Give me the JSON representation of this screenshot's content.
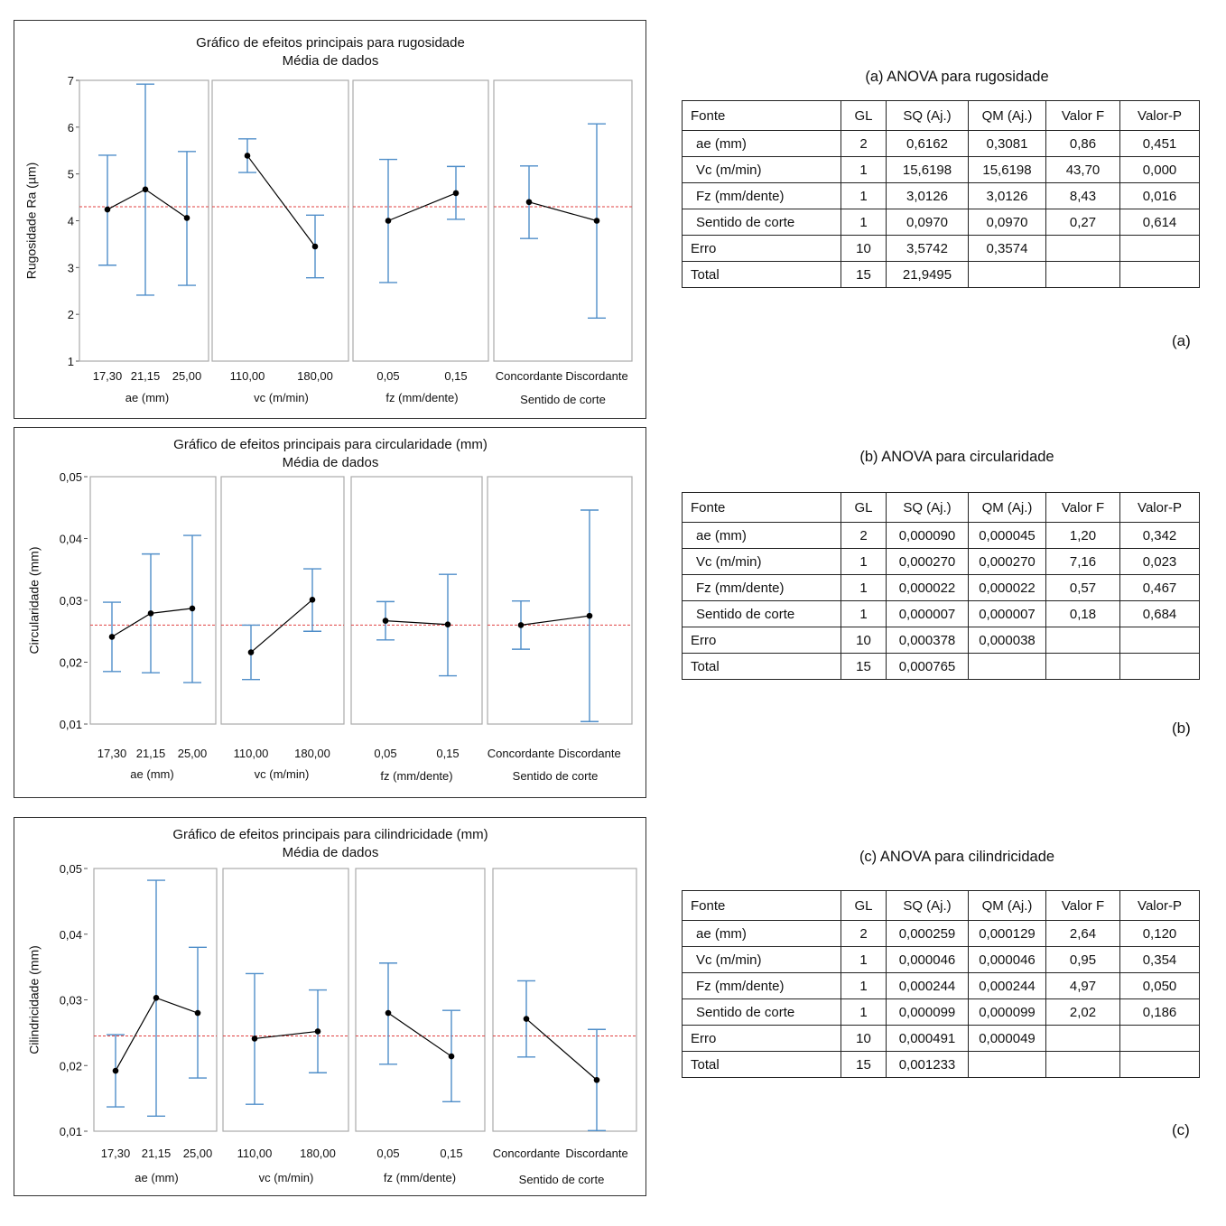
{
  "colors": {
    "errorbar": "#4f8ec9",
    "panel_border": "#aaaaaa",
    "refline": "#e04040",
    "line": "#000000"
  },
  "chart_data": [
    {
      "type": "line",
      "title": "Gráfico de efeitos principais para rugosidade",
      "subtitle": "Média de dados",
      "ylabel": "Rugosidade Ra (µm)",
      "ylim": [
        1,
        7
      ],
      "yticks": [
        "1",
        "2",
        "3",
        "4",
        "5",
        "6",
        "7"
      ],
      "mean_line": 4.3,
      "panels": [
        {
          "factor": "ae (mm)",
          "levels": [
            "17,30",
            "21,15",
            "25,00"
          ],
          "means": [
            4.24,
            4.67,
            4.06
          ],
          "lower": [
            3.05,
            2.41,
            2.62
          ],
          "upper": [
            5.4,
            6.92,
            5.48
          ]
        },
        {
          "factor": "vc (m/min)",
          "levels": [
            "110,00",
            "180,00"
          ],
          "means": [
            5.39,
            3.45
          ],
          "lower": [
            5.03,
            2.78
          ],
          "upper": [
            5.75,
            4.12
          ]
        },
        {
          "factor": "fz (mm/dente)",
          "levels": [
            "0,05",
            "0,15"
          ],
          "means": [
            4.0,
            4.59
          ],
          "lower": [
            2.68,
            4.03
          ],
          "upper": [
            5.31,
            5.16
          ]
        },
        {
          "factor": "Sentido de corte",
          "levels": [
            "Concordante",
            "Discordante"
          ],
          "means": [
            4.4,
            4.0
          ],
          "lower": [
            3.62,
            1.92
          ],
          "upper": [
            5.17,
            6.07
          ]
        }
      ]
    },
    {
      "type": "line",
      "title": "Gráfico de efeitos principais para circularidade (mm)",
      "subtitle": "Média de dados",
      "ylabel": "Circularidade (mm)",
      "ylim": [
        0.01,
        0.05
      ],
      "yticks": [
        "0,01",
        "0,02",
        "0,03",
        "0,04",
        "0,05"
      ],
      "mean_line": 0.026,
      "panels": [
        {
          "factor": "ae (mm)",
          "levels": [
            "17,30",
            "21,15",
            "25,00"
          ],
          "means": [
            0.0241,
            0.0279,
            0.0287
          ],
          "lower": [
            0.0185,
            0.0183,
            0.0167
          ],
          "upper": [
            0.0297,
            0.0375,
            0.0405
          ]
        },
        {
          "factor": "vc (m/min)",
          "levels": [
            "110,00",
            "180,00"
          ],
          "means": [
            0.0216,
            0.0301
          ],
          "lower": [
            0.0172,
            0.025
          ],
          "upper": [
            0.026,
            0.0351
          ]
        },
        {
          "factor": "fz (mm/dente)",
          "levels": [
            "0,05",
            "0,15"
          ],
          "means": [
            0.0267,
            0.0261
          ],
          "lower": [
            0.0236,
            0.0178
          ],
          "upper": [
            0.0298,
            0.0342
          ]
        },
        {
          "factor": "Sentido de corte",
          "levels": [
            "Concordante",
            "Discordante"
          ],
          "means": [
            0.026,
            0.0275
          ],
          "lower": [
            0.0221,
            0.0104
          ],
          "upper": [
            0.0299,
            0.0446
          ]
        }
      ]
    },
    {
      "type": "line",
      "title": "Gráfico de efeitos principais para cilindricidade (mm)",
      "subtitle": "Média de dados",
      "ylabel": "Cilindricidade (mm)",
      "ylim": [
        0.01,
        0.05
      ],
      "yticks": [
        "0,01",
        "0,02",
        "0,03",
        "0,04",
        "0,05"
      ],
      "mean_line": 0.0245,
      "panels": [
        {
          "factor": "ae (mm)",
          "levels": [
            "17,30",
            "21,15",
            "25,00"
          ],
          "means": [
            0.0192,
            0.0303,
            0.028
          ],
          "lower": [
            0.0137,
            0.0123,
            0.0181
          ],
          "upper": [
            0.0247,
            0.0482,
            0.038
          ]
        },
        {
          "factor": "vc (m/min)",
          "levels": [
            "110,00",
            "180,00"
          ],
          "means": [
            0.0241,
            0.0252
          ],
          "lower": [
            0.0141,
            0.0189
          ],
          "upper": [
            0.034,
            0.0315
          ]
        },
        {
          "factor": "fz (mm/dente)",
          "levels": [
            "0,05",
            "0,15"
          ],
          "means": [
            0.028,
            0.0214
          ],
          "lower": [
            0.0202,
            0.0145
          ],
          "upper": [
            0.0356,
            0.0284
          ]
        },
        {
          "factor": "Sentido de corte",
          "levels": [
            "Concordante",
            "Discordante"
          ],
          "means": [
            0.0271,
            0.0178
          ],
          "lower": [
            0.0213,
            0.0101
          ],
          "upper": [
            0.0329,
            0.0255
          ]
        }
      ]
    }
  ],
  "anova": [
    {
      "title": "(a) ANOVA para rugosidade",
      "letter": "(a)",
      "headers": [
        "Fonte",
        "GL",
        "SQ (Aj.)",
        "QM (Aj.)",
        "Valor F",
        "Valor-P"
      ],
      "rows": [
        [
          "ae (mm)",
          "2",
          "0,6162",
          "0,3081",
          "0,86",
          "0,451"
        ],
        [
          "Vc (m/min)",
          "1",
          "15,6198",
          "15,6198",
          "43,70",
          "0,000"
        ],
        [
          "Fz (mm/dente)",
          "1",
          "3,0126",
          "3,0126",
          "8,43",
          "0,016"
        ],
        [
          "Sentido de corte",
          "1",
          "0,0970",
          "0,0970",
          "0,27",
          "0,614"
        ],
        [
          "Erro",
          "10",
          "3,5742",
          "0,3574",
          "",
          ""
        ],
        [
          "Total",
          "15",
          "21,9495",
          "",
          "",
          ""
        ]
      ]
    },
    {
      "title": "(b) ANOVA para circularidade",
      "letter": "(b)",
      "headers": [
        "Fonte",
        "GL",
        "SQ (Aj.)",
        "QM (Aj.)",
        "Valor F",
        "Valor-P"
      ],
      "rows": [
        [
          "ae (mm)",
          "2",
          "0,000090",
          "0,000045",
          "1,20",
          "0,342"
        ],
        [
          "Vc (m/min)",
          "1",
          "0,000270",
          "0,000270",
          "7,16",
          "0,023"
        ],
        [
          "Fz (mm/dente)",
          "1",
          "0,000022",
          "0,000022",
          "0,57",
          "0,467"
        ],
        [
          "Sentido de corte",
          "1",
          "0,000007",
          "0,000007",
          "0,18",
          "0,684"
        ],
        [
          "Erro",
          "10",
          "0,000378",
          "0,000038",
          "",
          ""
        ],
        [
          "Total",
          "15",
          "0,000765",
          "",
          "",
          ""
        ]
      ]
    },
    {
      "title": "(c) ANOVA para cilindricidade",
      "letter": "(c)",
      "headers": [
        "Fonte",
        "GL",
        "SQ (Aj.)",
        "QM (Aj.)",
        "Valor F",
        "Valor-P"
      ],
      "rows": [
        [
          "ae (mm)",
          "2",
          "0,000259",
          "0,000129",
          "2,64",
          "0,120"
        ],
        [
          "Vc (m/min)",
          "1",
          "0,000046",
          "0,000046",
          "0,95",
          "0,354"
        ],
        [
          "Fz (mm/dente)",
          "1",
          "0,000244",
          "0,000244",
          "4,97",
          "0,050"
        ],
        [
          "Sentido de corte",
          "1",
          "0,000099",
          "0,000099",
          "2,02",
          "0,186"
        ],
        [
          "Erro",
          "10",
          "0,000491",
          "0,000049",
          "",
          ""
        ],
        [
          "Total",
          "15",
          "0,001233",
          "",
          "",
          ""
        ]
      ]
    }
  ]
}
